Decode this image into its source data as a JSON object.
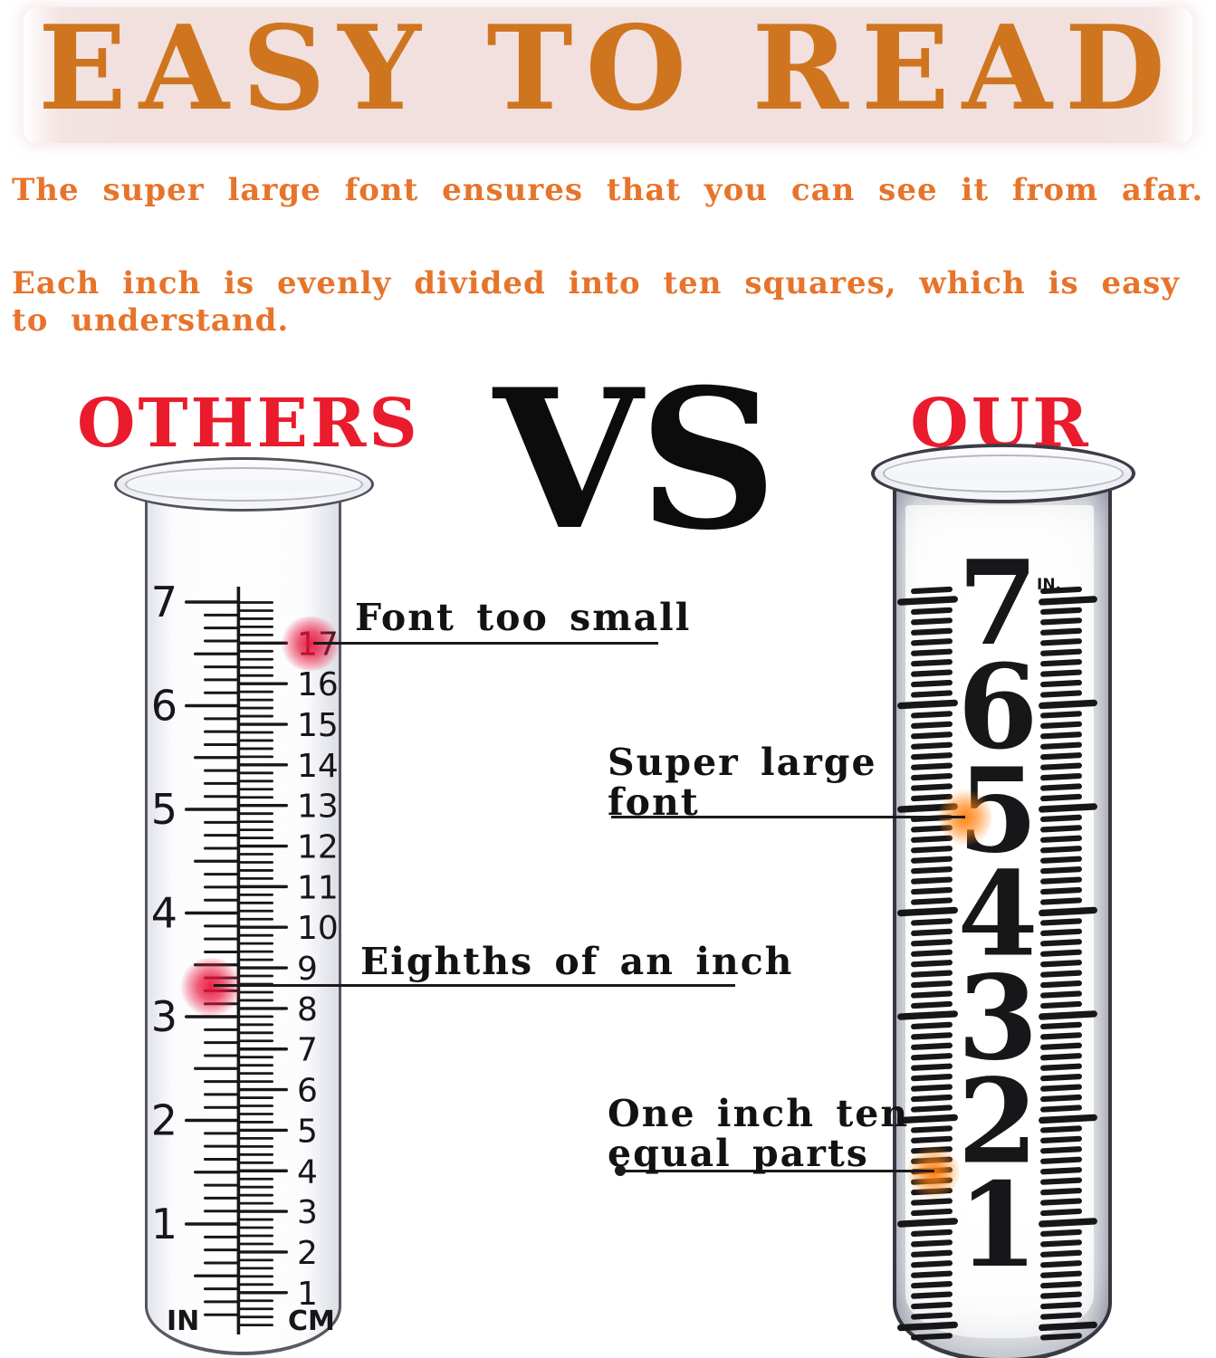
{
  "title": {
    "text": "EASY TO READ"
  },
  "intro": {
    "paragraph1": "The super large font ensures that you can see it from afar.",
    "paragraph2_line1": "Each inch is evenly divided into ten squares, which is easy",
    "paragraph2_line2": "to understand."
  },
  "comparison": {
    "left_label": "OTHERS",
    "vs_label": "VS",
    "right_label": "OUR"
  },
  "callouts": {
    "font_too_small": "Font too small",
    "super_large": [
      "Super large",
      "font"
    ],
    "eighths": "Eighths of an inch",
    "one_inch": [
      "One inch ten",
      "equal parts"
    ]
  },
  "left_cylinder": {
    "inch_labels": [
      "1",
      "2",
      "3",
      "4",
      "5",
      "6",
      "7"
    ],
    "cm_labels": [
      "1",
      "2",
      "3",
      "4",
      "5",
      "6",
      "7",
      "8",
      "9",
      "10",
      "11",
      "12",
      "13",
      "14",
      "15",
      "16",
      "17"
    ],
    "inch_unit": "IN",
    "cm_unit": "CM"
  },
  "right_cylinder": {
    "inch_labels": [
      "7",
      "6",
      "5",
      "4",
      "3",
      "2",
      "1"
    ],
    "unit": "IN."
  },
  "colors": {
    "title_orange": "#cf7520",
    "body_orange": "#e7742b",
    "label_red": "#ea1b2c",
    "ink": "#17171a",
    "band_pink": "#f1e0de",
    "red_glow": "#e8143c",
    "orange_glow": "#ff7d0a"
  }
}
